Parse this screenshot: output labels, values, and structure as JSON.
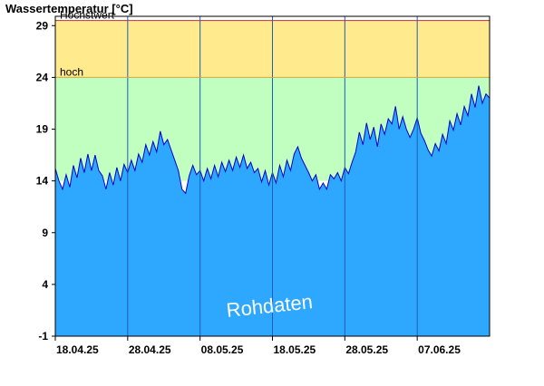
{
  "chart_data": {
    "type": "area",
    "ylabel": "Wassertemperatur [°C]",
    "ylim": [
      -1,
      29.9
    ],
    "y_ticks": [
      29,
      24,
      19,
      14,
      9,
      4,
      -1
    ],
    "x_ticks": [
      "18.04.25",
      "28.04.25",
      "08.05.25",
      "18.05.25",
      "28.05.25",
      "07.06.25"
    ],
    "x_range_days": [
      0,
      60
    ],
    "grid": true,
    "series": [
      {
        "values": [
          [
            0,
            15.2
          ],
          [
            0.5,
            14.0
          ],
          [
            1,
            13.2
          ],
          [
            1.5,
            14.6
          ],
          [
            2,
            13.4
          ],
          [
            2.5,
            15.5
          ],
          [
            3,
            14.3
          ],
          [
            3.5,
            16.2
          ],
          [
            4,
            14.8
          ],
          [
            4.5,
            16.6
          ],
          [
            5,
            15.0
          ],
          [
            5.5,
            16.5
          ],
          [
            6,
            15.0
          ],
          [
            6.5,
            14.5
          ],
          [
            7,
            13.2
          ],
          [
            7.5,
            14.8
          ],
          [
            8,
            13.6
          ],
          [
            8.5,
            15.3
          ],
          [
            9,
            14.0
          ],
          [
            9.5,
            15.6
          ],
          [
            10,
            14.8
          ],
          [
            10.5,
            16.0
          ],
          [
            11,
            15.0
          ],
          [
            11.5,
            16.6
          ],
          [
            12,
            15.8
          ],
          [
            12.5,
            17.5
          ],
          [
            13,
            16.5
          ],
          [
            13.5,
            17.8
          ],
          [
            14,
            16.8
          ],
          [
            14.5,
            18.8
          ],
          [
            15,
            17.5
          ],
          [
            15.5,
            18.0
          ],
          [
            16,
            17.0
          ],
          [
            16.5,
            16.0
          ],
          [
            17,
            15.0
          ],
          [
            17.5,
            13.2
          ],
          [
            18,
            12.8
          ],
          [
            18.5,
            14.5
          ],
          [
            19,
            15.5
          ],
          [
            19.5,
            14.6
          ],
          [
            20,
            15.0
          ],
          [
            20.5,
            14.0
          ],
          [
            21,
            15.2
          ],
          [
            21.5,
            14.2
          ],
          [
            22,
            15.5
          ],
          [
            22.5,
            14.4
          ],
          [
            23,
            15.8
          ],
          [
            23.5,
            14.9
          ],
          [
            24,
            16.0
          ],
          [
            24.5,
            15.0
          ],
          [
            25,
            16.3
          ],
          [
            25.5,
            15.3
          ],
          [
            26,
            16.5
          ],
          [
            26.5,
            15.2
          ],
          [
            27,
            15.8
          ],
          [
            27.5,
            14.8
          ],
          [
            28,
            15.2
          ],
          [
            28.5,
            13.9
          ],
          [
            29,
            15.0
          ],
          [
            29.5,
            13.6
          ],
          [
            30,
            14.8
          ],
          [
            30.5,
            13.8
          ],
          [
            31,
            15.5
          ],
          [
            31.5,
            14.4
          ],
          [
            32,
            16.0
          ],
          [
            32.5,
            15.0
          ],
          [
            33,
            16.6
          ],
          [
            33.5,
            17.3
          ],
          [
            34,
            16.2
          ],
          [
            34.5,
            15.5
          ],
          [
            35,
            14.8
          ],
          [
            35.5,
            14.0
          ],
          [
            36,
            14.6
          ],
          [
            36.5,
            13.2
          ],
          [
            37,
            13.8
          ],
          [
            37.5,
            13.2
          ],
          [
            38,
            14.6
          ],
          [
            38.5,
            14.2
          ],
          [
            39,
            14.8
          ],
          [
            39.5,
            14.0
          ],
          [
            40,
            15.3
          ],
          [
            40.5,
            14.7
          ],
          [
            41,
            15.8
          ],
          [
            41.5,
            16.8
          ],
          [
            42,
            18.7
          ],
          [
            42.5,
            17.5
          ],
          [
            43,
            19.6
          ],
          [
            43.5,
            18.0
          ],
          [
            44,
            19.2
          ],
          [
            44.5,
            17.3
          ],
          [
            45,
            19.5
          ],
          [
            45.5,
            18.5
          ],
          [
            46,
            20.0
          ],
          [
            46.5,
            19.5
          ],
          [
            47,
            21.2
          ],
          [
            47.5,
            19.0
          ],
          [
            48,
            20.2
          ],
          [
            48.5,
            19.0
          ],
          [
            49,
            18.2
          ],
          [
            49.5,
            19.0
          ],
          [
            50,
            20.1
          ],
          [
            50.5,
            18.6
          ],
          [
            51,
            17.9
          ],
          [
            51.5,
            17.0
          ],
          [
            52,
            16.4
          ],
          [
            52.5,
            17.6
          ],
          [
            53,
            16.9
          ],
          [
            53.5,
            18.5
          ],
          [
            54,
            17.6
          ],
          [
            54.5,
            19.8
          ],
          [
            55,
            18.9
          ],
          [
            55.5,
            20.5
          ],
          [
            56,
            19.4
          ],
          [
            56.5,
            21.2
          ],
          [
            57,
            20.3
          ],
          [
            57.5,
            22.4
          ],
          [
            58,
            21.1
          ],
          [
            58.5,
            23.2
          ],
          [
            59,
            21.5
          ],
          [
            59.5,
            22.4
          ],
          [
            60,
            22.0
          ]
        ]
      }
    ],
    "bands": [
      {
        "label": "Höchstwert",
        "from": 24,
        "to": 29.5,
        "color": "#ffea8d"
      },
      {
        "label": "hoch",
        "from": 14,
        "to": 24,
        "color": "#c1ffc1"
      }
    ],
    "threshold_lines": [
      {
        "value": 29.5,
        "color": "#b03050"
      },
      {
        "value": 24,
        "color": "#d9a73a"
      }
    ],
    "watermark": "Rohdaten",
    "colors": {
      "area_fill": "#2ea7ff",
      "series_line": "#0000c8",
      "plot_background": "#ffffff",
      "vertical_grid": "#1d5fb0"
    }
  }
}
